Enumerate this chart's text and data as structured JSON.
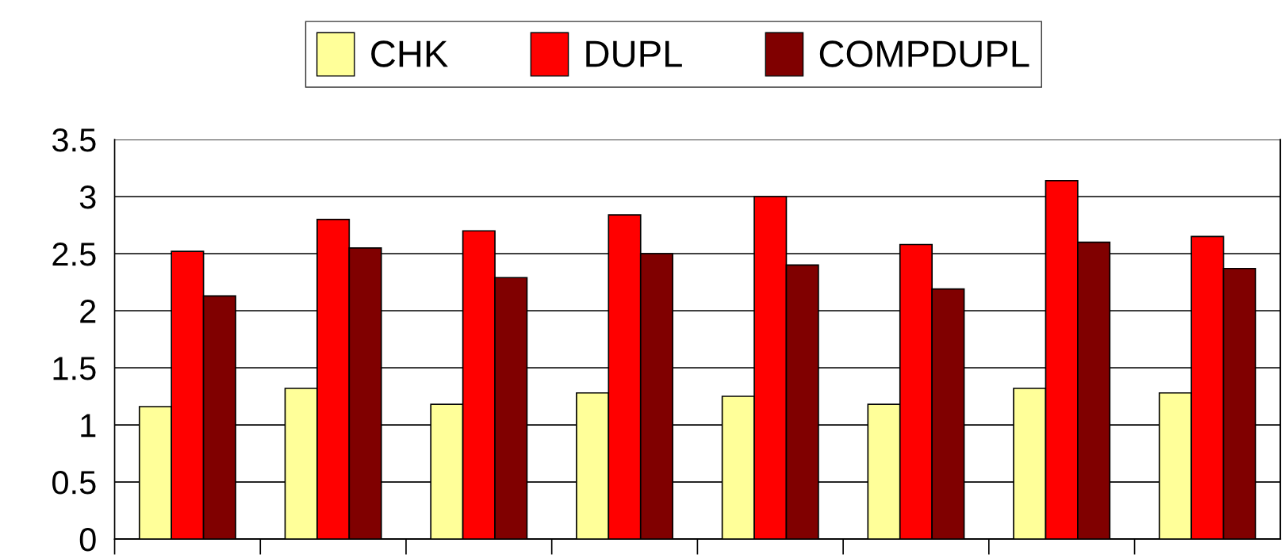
{
  "chart_data": {
    "type": "bar",
    "categories": [
      null,
      null,
      null,
      null,
      null,
      null,
      null,
      null
    ],
    "series": [
      {
        "name": "CHK",
        "color": "#ffff99",
        "values": [
          1.16,
          1.32,
          1.18,
          1.28,
          1.25,
          1.18,
          1.32,
          1.28
        ]
      },
      {
        "name": "DUPL",
        "color": "#ff0000",
        "values": [
          2.52,
          2.8,
          2.7,
          2.84,
          3.0,
          2.58,
          3.14,
          2.65
        ]
      },
      {
        "name": "COMPDUPL",
        "color": "#800000",
        "values": [
          2.13,
          2.55,
          2.29,
          2.5,
          2.4,
          2.19,
          2.6,
          2.37
        ]
      }
    ],
    "ylim": [
      0,
      3.5
    ],
    "yticks": [
      0,
      0.5,
      1,
      1.5,
      2,
      2.5,
      3,
      3.5
    ],
    "grid": "y",
    "legend": "top"
  }
}
